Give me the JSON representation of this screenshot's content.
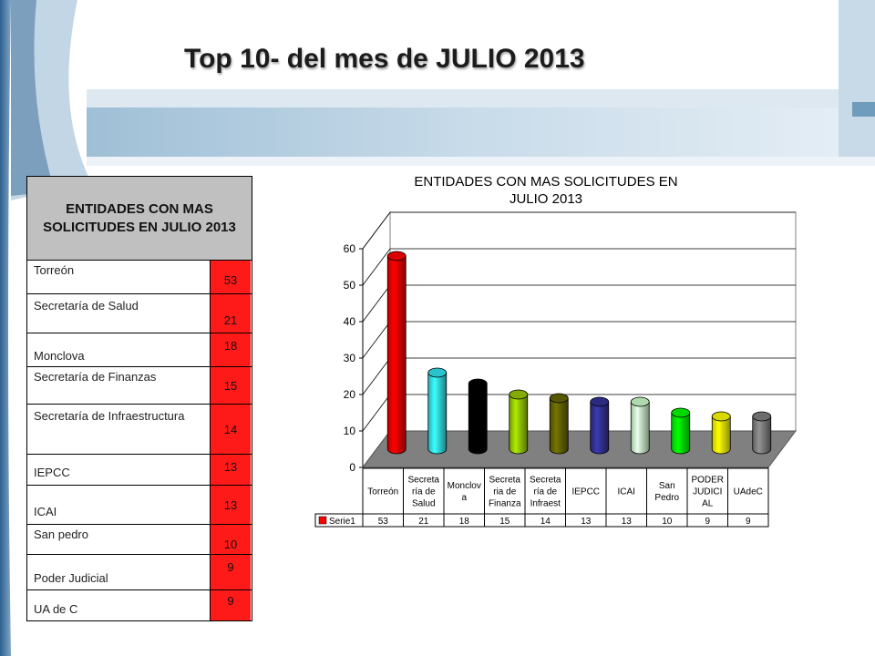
{
  "slide": {
    "title": "Top 10- del mes de JULIO 2013"
  },
  "table": {
    "header": "ENTIDADES CON MAS SOLICITUDES EN JULIO 2013",
    "rows": [
      {
        "name": "Torreón",
        "value": "53"
      },
      {
        "name": "Secretaría de Salud",
        "value": "21"
      },
      {
        "name": "Monclova",
        "value": "18"
      },
      {
        "name": "Secretaría de Finanzas",
        "value": "15"
      },
      {
        "name": "Secretaría de Infraestructura",
        "value": "14"
      },
      {
        "name": "IEPCC",
        "value": "13"
      },
      {
        "name": "ICAI",
        "value": "13"
      },
      {
        "name": "San pedro",
        "value": "10"
      },
      {
        "name": "Poder Judicial",
        "value": "9"
      },
      {
        "name": "UA de C",
        "value": "9"
      }
    ]
  },
  "colors": {
    "value_cell": "#ff1a1a",
    "header_cell": "#c0c0c0"
  },
  "chart_data": {
    "type": "bar",
    "title_lines": [
      "ENTIDADES CON MAS SOLICITUDES EN",
      "JULIO 2013"
    ],
    "categories": [
      [
        "Torreón"
      ],
      [
        "Secreta",
        "ría de",
        "Salud"
      ],
      [
        "Monclov",
        "a"
      ],
      [
        "Secreta",
        "ria de",
        "Finanza"
      ],
      [
        "Secreta",
        "ría de",
        "Infraest"
      ],
      [
        "IEPCC"
      ],
      [
        "ICAI"
      ],
      [
        "San",
        "Pedro"
      ],
      [
        "PODER",
        "JUDICI",
        "AL"
      ],
      [
        "UAdeC"
      ]
    ],
    "series": [
      {
        "name": "Serie1",
        "values": [
          53,
          21,
          18,
          15,
          14,
          13,
          13,
          10,
          9,
          9
        ]
      }
    ],
    "bar_colors": [
      "#ff0000",
      "#33e5f0",
      "#000000",
      "#99cc00",
      "#666600",
      "#333399",
      "#ccffcc",
      "#00ff00",
      "#ffff00",
      "#808080"
    ],
    "ylim": [
      0,
      60
    ],
    "yticks": [
      0,
      10,
      20,
      30,
      40,
      50,
      60
    ],
    "grid": true,
    "legend": "data-table"
  }
}
